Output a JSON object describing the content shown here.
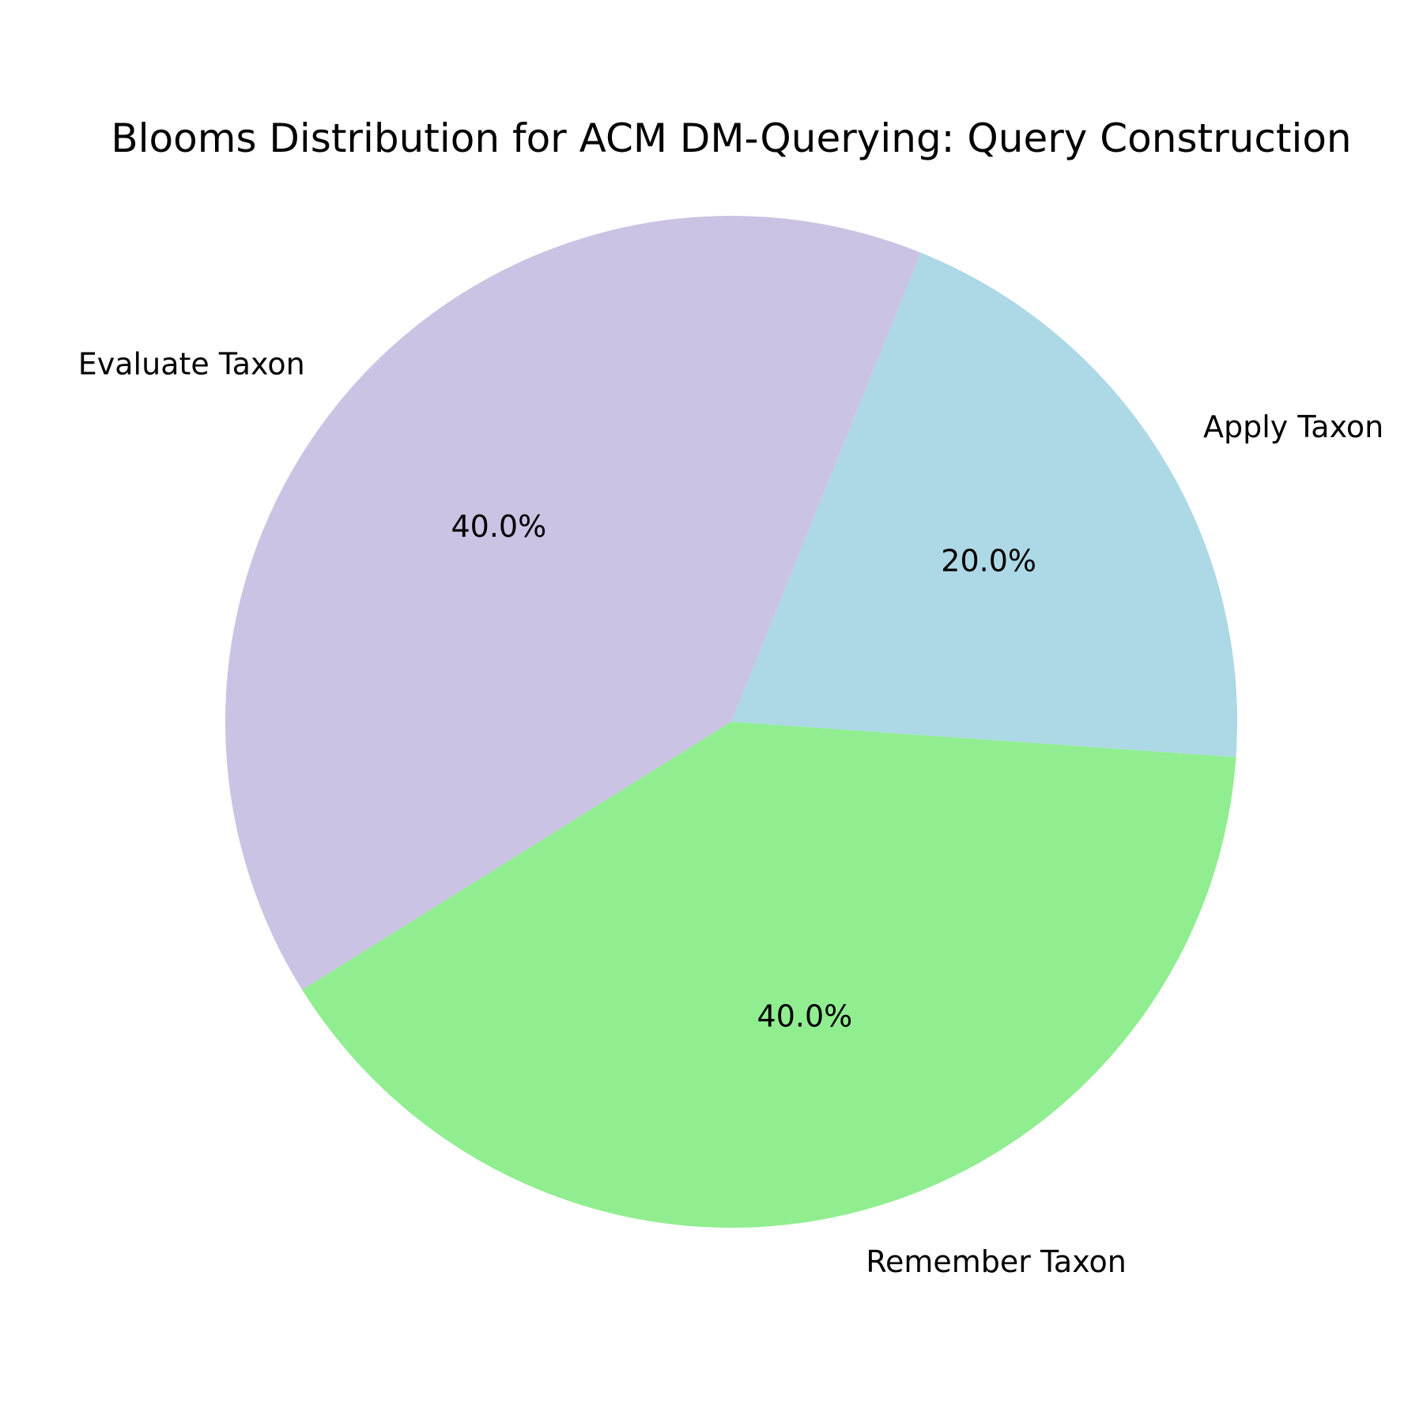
{
  "chart_data": {
    "type": "pie",
    "title": "Blooms Distribution for ACM DM-Querying: Query Construction",
    "slices": [
      {
        "label": "Apply Taxon",
        "value": 20.0,
        "pct_label": "20.0%",
        "color": "#add8e6"
      },
      {
        "label": "Evaluate Taxon",
        "value": 40.0,
        "pct_label": "40.0%",
        "color": "#cbc3e3"
      },
      {
        "label": "Remember Taxon",
        "value": 40.0,
        "pct_label": "40.0%",
        "color": "#90ee90"
      }
    ],
    "start_angle_deg": -4,
    "direction": "counterclockwise"
  }
}
